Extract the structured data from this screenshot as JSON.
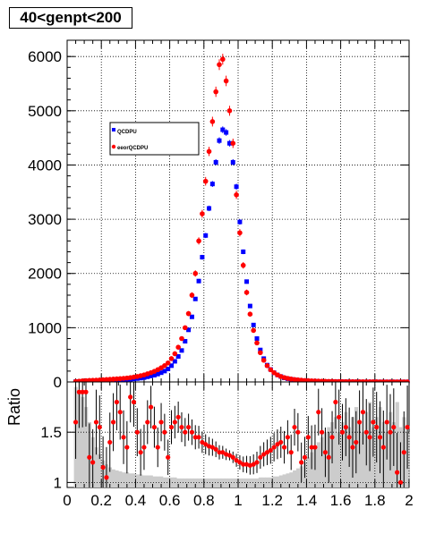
{
  "title": "40<genpt<200",
  "colors": {
    "series1": "#0000ff",
    "series2": "#ff0000",
    "band": "#cccccc",
    "grid": "#000000"
  },
  "chart_data": [
    {
      "type": "scatter",
      "panel": "main",
      "xlim": [
        0,
        2
      ],
      "ylim": [
        0,
        6300
      ],
      "y_ticks": [
        0,
        1000,
        2000,
        3000,
        4000,
        5000,
        6000
      ],
      "y_tick_labels": [
        "0",
        "1000",
        "2000",
        "3000",
        "4000",
        "5000",
        "6000"
      ],
      "grid": true,
      "legend_placement": "upper-left",
      "x": [
        0.05,
        0.07,
        0.09,
        0.11,
        0.13,
        0.15,
        0.17,
        0.19,
        0.21,
        0.23,
        0.25,
        0.27,
        0.29,
        0.31,
        0.33,
        0.35,
        0.37,
        0.39,
        0.41,
        0.43,
        0.45,
        0.47,
        0.49,
        0.51,
        0.53,
        0.55,
        0.57,
        0.59,
        0.61,
        0.63,
        0.65,
        0.67,
        0.69,
        0.71,
        0.73,
        0.75,
        0.77,
        0.79,
        0.81,
        0.83,
        0.85,
        0.87,
        0.89,
        0.91,
        0.93,
        0.95,
        0.97,
        0.99,
        1.01,
        1.03,
        1.05,
        1.07,
        1.09,
        1.11,
        1.13,
        1.15,
        1.17,
        1.19,
        1.21,
        1.23,
        1.25,
        1.27,
        1.29,
        1.31,
        1.33,
        1.35,
        1.37,
        1.39,
        1.41,
        1.43,
        1.45,
        1.47,
        1.49,
        1.51,
        1.53,
        1.55,
        1.57,
        1.59,
        1.61,
        1.63,
        1.65,
        1.67,
        1.69,
        1.71,
        1.73,
        1.75,
        1.77,
        1.79,
        1.81,
        1.83,
        1.85,
        1.87,
        1.89,
        1.91,
        1.93,
        1.95,
        1.97,
        1.99
      ],
      "series": [
        {
          "name": "QCDPU",
          "marker": "square",
          "values": [
            5,
            8,
            10,
            15,
            18,
            20,
            22,
            24,
            26,
            28,
            30,
            33,
            35,
            38,
            40,
            45,
            50,
            55,
            62,
            70,
            80,
            95,
            110,
            125,
            145,
            170,
            200,
            240,
            300,
            380,
            470,
            580,
            750,
            960,
            1200,
            1530,
            1860,
            2300,
            2700,
            3200,
            3650,
            4050,
            4450,
            4650,
            4600,
            4400,
            4050,
            3600,
            2950,
            2400,
            1850,
            1400,
            1050,
            800,
            590,
            430,
            310,
            230,
            170,
            130,
            100,
            75,
            60,
            50,
            40,
            32,
            26,
            22,
            18,
            15,
            12,
            10,
            8,
            7,
            6,
            5,
            4,
            4,
            3,
            3,
            2,
            2,
            2,
            1,
            1,
            1,
            1,
            1,
            1,
            1,
            1,
            1,
            1,
            1,
            1,
            1,
            1,
            1
          ]
        },
        {
          "name": "eeorQCDPU",
          "marker": "circle",
          "values": [
            8,
            14,
            20,
            24,
            28,
            30,
            33,
            36,
            40,
            44,
            48,
            52,
            56,
            60,
            66,
            72,
            80,
            90,
            100,
            115,
            130,
            150,
            170,
            195,
            225,
            260,
            300,
            350,
            430,
            520,
            640,
            800,
            1000,
            1260,
            1600,
            2000,
            2600,
            3100,
            3700,
            4250,
            4800,
            5350,
            5850,
            5950,
            5550,
            5000,
            4400,
            3450,
            2750,
            2150,
            1650,
            1250,
            950,
            720,
            540,
            400,
            300,
            225,
            170,
            130,
            100,
            80,
            65,
            54,
            45,
            38,
            32,
            27,
            23,
            20,
            17,
            15,
            13,
            11,
            10,
            9,
            8,
            7,
            6,
            6,
            5,
            5,
            4,
            4,
            4,
            3,
            3,
            3,
            3,
            2,
            2,
            2,
            2,
            2,
            2,
            2,
            2,
            2
          ]
        }
      ]
    },
    {
      "type": "scatter",
      "panel": "ratio",
      "xlim": [
        0,
        2
      ],
      "ylim": [
        0.95,
        2.0
      ],
      "y_ticks": [
        1,
        1.5
      ],
      "y_tick_labels": [
        "1",
        "1.5"
      ],
      "x_ticks": [
        0,
        0.2,
        0.4,
        0.6,
        0.8,
        1,
        1.2,
        1.4,
        1.6,
        1.8,
        2
      ],
      "x_tick_labels": [
        "0",
        "0.2",
        "0.4",
        "0.6",
        "0.8",
        "1",
        "1.2",
        "1.4",
        "1.6",
        "1.8",
        "2"
      ],
      "ylabel": "Ratio",
      "grid": true,
      "x": [
        0.05,
        0.07,
        0.09,
        0.11,
        0.13,
        0.15,
        0.17,
        0.19,
        0.21,
        0.23,
        0.25,
        0.27,
        0.29,
        0.31,
        0.33,
        0.35,
        0.37,
        0.39,
        0.41,
        0.43,
        0.45,
        0.47,
        0.49,
        0.51,
        0.53,
        0.55,
        0.57,
        0.59,
        0.61,
        0.63,
        0.65,
        0.67,
        0.69,
        0.71,
        0.73,
        0.75,
        0.77,
        0.79,
        0.81,
        0.83,
        0.85,
        0.87,
        0.89,
        0.91,
        0.93,
        0.95,
        0.97,
        0.99,
        1.01,
        1.03,
        1.05,
        1.07,
        1.09,
        1.11,
        1.13,
        1.15,
        1.17,
        1.19,
        1.21,
        1.23,
        1.25,
        1.27,
        1.29,
        1.31,
        1.33,
        1.35,
        1.37,
        1.39,
        1.41,
        1.43,
        1.45,
        1.47,
        1.49,
        1.51,
        1.53,
        1.55,
        1.57,
        1.59,
        1.61,
        1.63,
        1.65,
        1.67,
        1.69,
        1.71,
        1.73,
        1.75,
        1.77,
        1.79,
        1.81,
        1.83,
        1.85,
        1.87,
        1.89,
        1.91,
        1.93,
        1.95,
        1.97,
        1.99
      ],
      "ratio_values": [
        1.6,
        1.9,
        1.9,
        1.9,
        1.25,
        1.2,
        1.6,
        1.55,
        1.15,
        1.05,
        1.4,
        1.6,
        1.8,
        1.7,
        1.45,
        1.35,
        1.85,
        1.8,
        1.5,
        1.3,
        1.35,
        1.6,
        1.75,
        1.55,
        1.35,
        1.6,
        1.5,
        1.25,
        1.55,
        1.6,
        1.65,
        1.55,
        1.5,
        1.55,
        1.5,
        1.45,
        1.45,
        1.4,
        1.38,
        1.36,
        1.35,
        1.33,
        1.3,
        1.3,
        1.28,
        1.27,
        1.25,
        1.22,
        1.2,
        1.18,
        1.18,
        1.17,
        1.18,
        1.2,
        1.25,
        1.28,
        1.3,
        1.32,
        1.35,
        1.38,
        1.4,
        1.35,
        1.45,
        1.3,
        1.55,
        1.5,
        1.2,
        1.25,
        1.45,
        1.35,
        1.35,
        1.7,
        1.5,
        1.3,
        1.25,
        1.45,
        1.8,
        1.65,
        1.5,
        1.55,
        1.45,
        1.35,
        1.4,
        1.6,
        1.7,
        1.5,
        1.45,
        1.6,
        1.55,
        1.45,
        1.35,
        1.6,
        1.5,
        1.55,
        1.1,
        1.0,
        1.3,
        1.55
      ],
      "band_values": [
        1.95,
        1.9,
        1.85,
        1.75,
        1.6,
        1.45,
        1.35,
        1.28,
        1.22,
        1.18,
        1.15,
        1.13,
        1.12,
        1.11,
        1.1,
        1.1,
        1.09,
        1.09,
        1.08,
        1.08,
        1.07,
        1.07,
        1.07,
        1.06,
        1.06,
        1.06,
        1.05,
        1.05,
        1.05,
        1.05,
        1.04,
        1.04,
        1.04,
        1.04,
        1.04,
        1.04,
        1.04,
        1.04,
        1.04,
        1.04,
        1.04,
        1.04,
        1.04,
        1.04,
        1.04,
        1.04,
        1.04,
        1.04,
        1.04,
        1.04,
        1.04,
        1.04,
        1.04,
        1.04,
        1.05,
        1.05,
        1.05,
        1.05,
        1.06,
        1.06,
        1.07,
        1.08,
        1.09,
        1.1,
        1.12,
        1.14,
        1.16,
        1.2,
        1.25,
        1.3,
        1.35,
        1.4,
        1.45,
        1.5,
        1.55,
        1.6,
        1.65,
        1.5,
        1.6,
        1.7,
        1.55,
        1.65,
        1.75,
        1.6,
        1.5,
        1.7,
        1.8,
        1.55,
        1.65,
        1.75,
        1.6,
        1.5,
        1.7,
        1.6,
        1.8,
        1.55,
        1.65,
        1.5
      ]
    }
  ]
}
